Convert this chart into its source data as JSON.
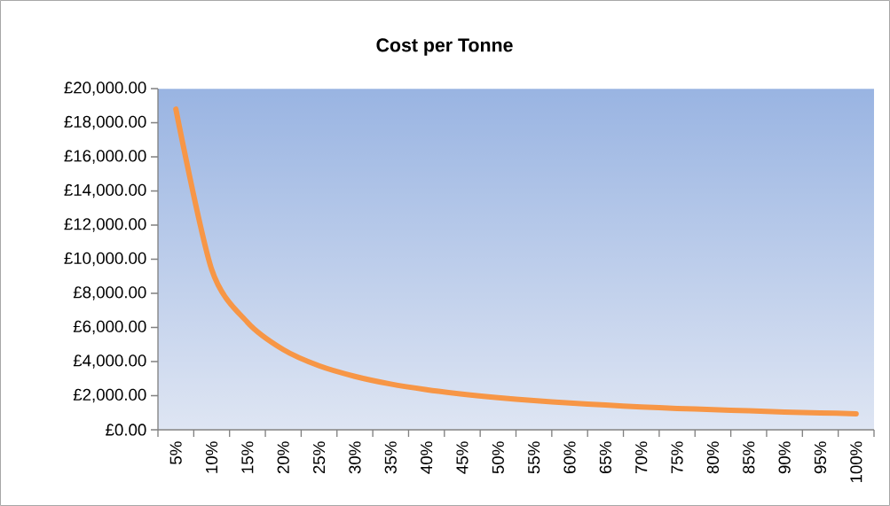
{
  "chart_data": {
    "type": "line",
    "title": "Cost per Tonne",
    "categories": [
      "5%",
      "10%",
      "15%",
      "20%",
      "25%",
      "30%",
      "35%",
      "40%",
      "45%",
      "50%",
      "55%",
      "60%",
      "65%",
      "70%",
      "75%",
      "80%",
      "85%",
      "90%",
      "95%",
      "100%"
    ],
    "series": [
      {
        "color": "#f79646",
        "values": [
          18800,
          9400,
          6300,
          4700,
          3750,
          3130,
          2680,
          2350,
          2090,
          1880,
          1710,
          1570,
          1450,
          1340,
          1250,
          1180,
          1110,
          1040,
          990,
          940
        ]
      }
    ],
    "ylim": [
      0,
      20000
    ],
    "yticks": [
      {
        "value": 0,
        "label": "£0.00"
      },
      {
        "value": 2000,
        "label": "£2,000.00"
      },
      {
        "value": 4000,
        "label": "£4,000.00"
      },
      {
        "value": 6000,
        "label": "£6,000.00"
      },
      {
        "value": 8000,
        "label": "£8,000.00"
      },
      {
        "value": 10000,
        "label": "£10,000.00"
      },
      {
        "value": 12000,
        "label": "£12,000.00"
      },
      {
        "value": 14000,
        "label": "£14,000.00"
      },
      {
        "value": 16000,
        "label": "£16,000.00"
      },
      {
        "value": 18000,
        "label": "£18,000.00"
      },
      {
        "value": 20000,
        "label": "£20,000.00"
      }
    ],
    "marker": "none",
    "line_style": "solid"
  }
}
